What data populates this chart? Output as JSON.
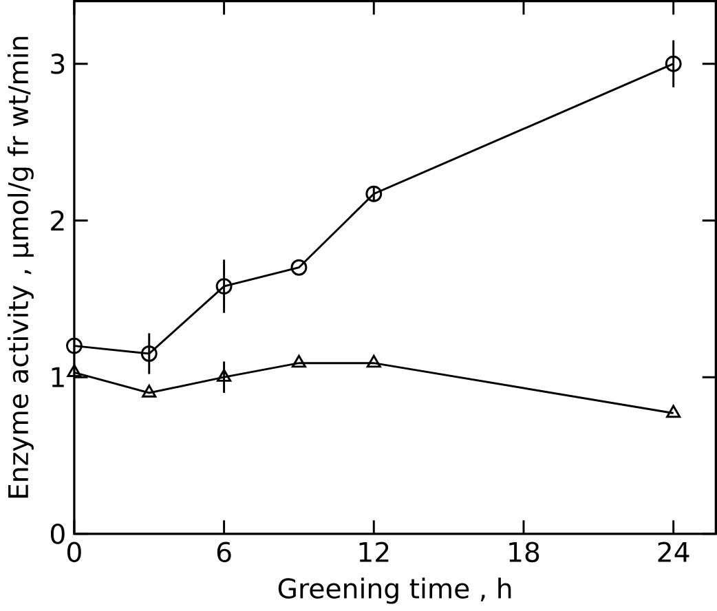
{
  "chart_data": {
    "type": "line",
    "xlabel": "Greening time , h",
    "ylabel": "Enzyme activity ,  μmol/g fr wt/min",
    "x": [
      0,
      3,
      6,
      9,
      12,
      24
    ],
    "series": [
      {
        "color": "#000000",
        "marker": "circle",
        "values": [
          1.2,
          1.15,
          1.58,
          1.7,
          2.17,
          3.0
        ],
        "errors": [
          null,
          0.13,
          0.17,
          null,
          0.05,
          0.15
        ]
      },
      {
        "color": "#000000",
        "marker": "triangle",
        "values": [
          1.03,
          0.9,
          1.0,
          1.09,
          1.09,
          0.77
        ],
        "errors": [
          null,
          null,
          0.1,
          null,
          null,
          null
        ]
      }
    ],
    "xlim": [
      0,
      25.7
    ],
    "ylim": [
      0,
      3.4
    ],
    "xticks": [
      0,
      6,
      12,
      18,
      24
    ],
    "yticks": [
      0,
      1,
      2,
      3
    ]
  }
}
